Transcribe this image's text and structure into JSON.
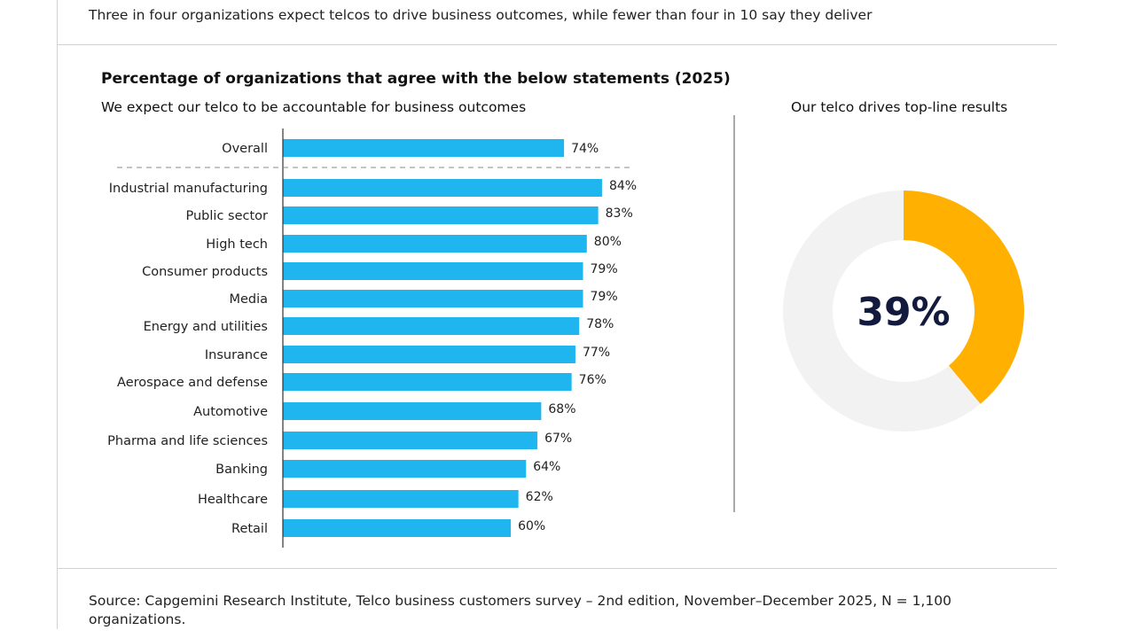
{
  "header": "Three in four organizations expect telcos to drive business outcomes, while fewer than four in 10 say they deliver",
  "source": "Source: Capgemini Research Institute, Telco business customers survey – 2nd edition, November–December 2025, N = 1,100 organizations.",
  "chart_data": [
    {
      "type": "bar",
      "orientation": "horizontal",
      "title": "Percentage of organizations that agree with the below statements (2025)",
      "subtitle": "We expect our telco to be accountable for business outcomes",
      "categories": [
        "Overall",
        "Industrial manufacturing",
        "Public sector",
        "High tech",
        "Consumer products",
        "Media",
        "Energy and utilities",
        "Insurance",
        "Aerospace and defense",
        "Automotive",
        "Pharma and life sciences",
        "Banking",
        "Healthcare",
        "Retail"
      ],
      "values": [
        74,
        84,
        83,
        80,
        79,
        79,
        78,
        77,
        76,
        68,
        67,
        64,
        62,
        60
      ],
      "labels": [
        "74%",
        "84%",
        "83%",
        "80%",
        "79%",
        "79%",
        "78%",
        "77%",
        "76%",
        "68%",
        "67%",
        "64%",
        "62%",
        "60%"
      ],
      "unit": "%",
      "color": "#1fb6ef",
      "grid": false
    },
    {
      "type": "pie",
      "variant": "donut",
      "subtitle": "Our telco drives top-line results",
      "value": 39,
      "center_label": "39%",
      "color": "#ffb000",
      "remainder_color": "#f2f2f2",
      "label_color": "#121a3d"
    }
  ]
}
